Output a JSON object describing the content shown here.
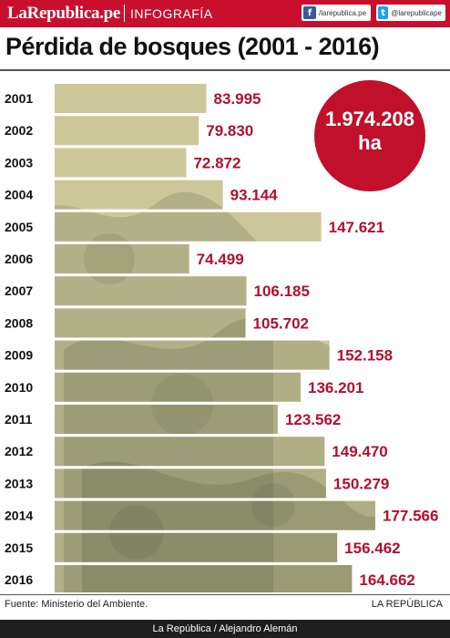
{
  "header": {
    "brand": "LaRepublica.pe",
    "section": "INFOGRAFÍA",
    "facebook_label": "/larepublica.pe",
    "twitter_label": "@larepublicape"
  },
  "colors": {
    "brand_red": "#c8102e",
    "bar_fill": "#ccc79a",
    "value_text": "#b0112d",
    "circle": "#c0102c"
  },
  "total": {
    "value": "1.974.208",
    "unit": "ha"
  },
  "chart_data": {
    "type": "bar",
    "orientation": "horizontal",
    "title": "Pérdida de bosques (2001 - 2016)",
    "categories": [
      "2001",
      "2002",
      "2003",
      "2004",
      "2005",
      "2006",
      "2007",
      "2008",
      "2009",
      "2010",
      "2011",
      "2012",
      "2013",
      "2014",
      "2015",
      "2016"
    ],
    "values": [
      83995,
      79830,
      72872,
      93144,
      147621,
      74499,
      106185,
      105702,
      152158,
      136201,
      123562,
      149470,
      150279,
      177566,
      156462,
      164662
    ],
    "value_labels": [
      "83.995",
      "79.830",
      "72.872",
      "93.144",
      "147.621",
      "74.499",
      "106.185",
      "105.702",
      "152.158",
      "136.201",
      "123.562",
      "149.470",
      "150.279",
      "177.566",
      "156.462",
      "164.662"
    ],
    "xlabel": "",
    "ylabel": "",
    "xlim": [
      0,
      177566
    ],
    "grid": false,
    "legend": "none"
  },
  "footer": {
    "source": "Fuente: Ministerio del Ambiente.",
    "publisher": "LA REPÚBLICA",
    "credit": "La República / Alejandro Alemán"
  }
}
